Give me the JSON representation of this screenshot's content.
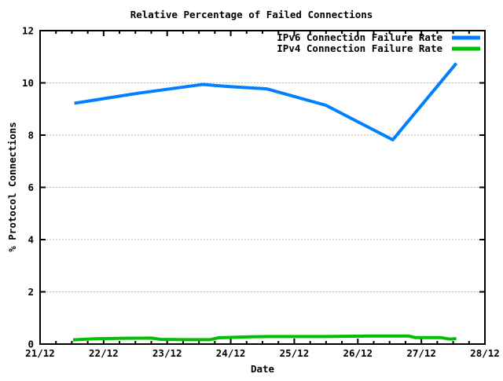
{
  "chart_data": {
    "type": "line",
    "title": "Relative Percentage of Failed Connections",
    "xlabel": "Date",
    "ylabel": "% Protocol Connections",
    "background_color": "#ffffff",
    "frame_color": "#000000",
    "x_axis": {
      "tick_labels": [
        "21/12",
        "22/12",
        "23/12",
        "24/12",
        "25/12",
        "26/12",
        "27/12",
        "28/12"
      ],
      "range_days": [
        0,
        7
      ],
      "minor_ticks_per_day": 4
    },
    "y_axis": {
      "ticks": [
        "0",
        "2",
        "4",
        "6",
        "8",
        "10",
        "12"
      ],
      "tick_values": [
        0,
        2,
        4,
        6,
        8,
        10,
        12
      ],
      "range": [
        0,
        12
      ],
      "gridline_values": [
        2,
        4,
        6,
        8,
        10
      ]
    },
    "grid": {
      "color": "#b8b8b8",
      "style": "dashed",
      "orientation": "horizontal-only"
    },
    "legend": {
      "position": "top-right-inside",
      "entries": [
        {
          "label": "IPv6 Connection Failure Rate",
          "color": "#0080ff"
        },
        {
          "label": "IPv4 Connection Failure Rate",
          "color": "#00c000"
        }
      ]
    },
    "series": [
      {
        "name": "IPv6 Connection Failure Rate",
        "color": "#0080ff",
        "points": [
          [
            0.54,
            9.22
          ],
          [
            1.53,
            9.6
          ],
          [
            2.56,
            9.94
          ],
          [
            2.96,
            9.86
          ],
          [
            3.57,
            9.77
          ],
          [
            4.5,
            9.14
          ],
          [
            5.55,
            7.82
          ],
          [
            6.55,
            10.75
          ]
        ]
      },
      {
        "name": "IPv4 Connection Failure Rate",
        "color": "#00c000",
        "points": [
          [
            0.52,
            0.16
          ],
          [
            0.82,
            0.2
          ],
          [
            1.3,
            0.22
          ],
          [
            1.75,
            0.23
          ],
          [
            1.9,
            0.18
          ],
          [
            2.3,
            0.17
          ],
          [
            2.68,
            0.17
          ],
          [
            2.8,
            0.24
          ],
          [
            3.3,
            0.28
          ],
          [
            3.6,
            0.29
          ],
          [
            4.5,
            0.29
          ],
          [
            5.2,
            0.31
          ],
          [
            5.8,
            0.31
          ],
          [
            5.9,
            0.25
          ],
          [
            6.3,
            0.25
          ],
          [
            6.45,
            0.19
          ],
          [
            6.55,
            0.21
          ]
        ]
      }
    ]
  }
}
